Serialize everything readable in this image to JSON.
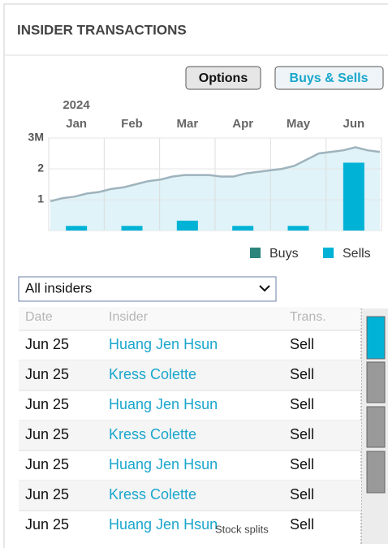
{
  "header": {
    "title": "INSIDER TRANSACTIONS"
  },
  "buttons": [
    "Options",
    "Buys & Sells"
  ],
  "chart_data": {
    "type": "bar",
    "year": "2024",
    "categories": [
      "Jan",
      "Feb",
      "Mar",
      "Apr",
      "May",
      "Jun"
    ],
    "series": [
      {
        "name": "Buys",
        "color": "#2b857d",
        "values": [
          0,
          0,
          0,
          0,
          0,
          0
        ]
      },
      {
        "name": "Sells",
        "color": "#00b2d6",
        "values": [
          0.15,
          0.15,
          0.32,
          0.15,
          0.15,
          2.2
        ]
      }
    ],
    "line": {
      "color": "#9fb3bd",
      "fill": "#dff3f8",
      "values": [
        0.95,
        1.05,
        1.1,
        1.2,
        1.25,
        1.35,
        1.4,
        1.5,
        1.6,
        1.65,
        1.75,
        1.8,
        1.8,
        1.8,
        1.75,
        1.75,
        1.85,
        1.9,
        1.95,
        2.0,
        2.1,
        2.3,
        2.5,
        2.55,
        2.6,
        2.7,
        2.6,
        2.55
      ]
    },
    "ylim": [
      0,
      3
    ],
    "yticks": [
      1,
      2,
      {
        "value": 3,
        "label": "3M"
      }
    ],
    "grid": true
  },
  "filter": {
    "selected": "All insiders"
  },
  "table": {
    "columns": [
      "Date",
      "Insider",
      "Trans."
    ],
    "rows": [
      [
        "Jun 25",
        "Huang Jen Hsun",
        "Sell"
      ],
      [
        "Jun 25",
        "Kress Colette",
        "Sell"
      ],
      [
        "Jun 25",
        "Huang Jen Hsun",
        "Sell"
      ],
      [
        "Jun 25",
        "Kress Colette",
        "Sell"
      ],
      [
        "Jun 25",
        "Huang Jen Hsun",
        "Sell"
      ],
      [
        "Jun 25",
        "Kress Colette",
        "Sell"
      ],
      [
        "Jun 25",
        "Huang Jen Hsun",
        "Sell"
      ]
    ]
  },
  "overlay": "Stock splits"
}
